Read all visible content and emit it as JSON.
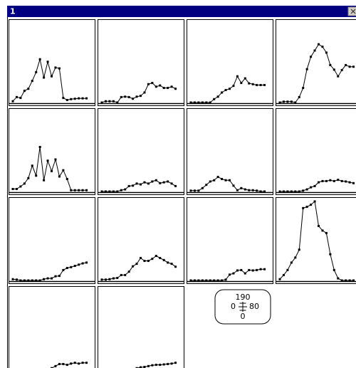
{
  "window": {
    "title": "1"
  },
  "chart_data": [
    {
      "type": "line",
      "x": [
        0,
        4,
        8,
        12,
        16,
        20,
        24,
        28,
        32,
        36,
        40,
        44,
        48,
        52,
        56,
        60,
        64,
        68,
        72,
        76
      ],
      "values": [
        3,
        13,
        11,
        28,
        33,
        52,
        73,
        104,
        60,
        98,
        63,
        84,
        82,
        11,
        6,
        8,
        9,
        10,
        10,
        10
      ],
      "xlim": [
        0,
        80
      ],
      "ylim": [
        0,
        190
      ],
      "color": "#000000"
    },
    {
      "type": "line",
      "x": [
        0,
        4,
        8,
        12,
        16,
        20,
        24,
        28,
        32,
        36,
        40,
        44,
        48,
        52,
        56,
        60,
        64,
        68,
        72,
        76
      ],
      "values": [
        0,
        3,
        3,
        3,
        0,
        13,
        14,
        13,
        9,
        14,
        16,
        24,
        44,
        47,
        38,
        41,
        35,
        35,
        38,
        33
      ],
      "xlim": [
        0,
        80
      ],
      "ylim": [
        0,
        190
      ],
      "color": "#000000"
    },
    {
      "type": "line",
      "x": [
        0,
        4,
        8,
        12,
        16,
        20,
        24,
        28,
        32,
        36,
        40,
        44,
        48,
        52,
        56,
        60,
        64,
        68,
        72,
        76
      ],
      "values": [
        0,
        0,
        0,
        0,
        0,
        0,
        8,
        14,
        24,
        30,
        33,
        40,
        63,
        47,
        58,
        46,
        44,
        42,
        42,
        42
      ],
      "xlim": [
        0,
        80
      ],
      "ylim": [
        0,
        190
      ],
      "color": "#000000"
    },
    {
      "type": "line",
      "x": [
        0,
        4,
        8,
        12,
        16,
        20,
        24,
        28,
        32,
        36,
        40,
        44,
        48,
        52,
        56,
        60,
        64,
        68,
        72,
        76
      ],
      "values": [
        0,
        2,
        2,
        2,
        0,
        13,
        35,
        80,
        110,
        125,
        140,
        134,
        120,
        90,
        79,
        63,
        78,
        90,
        86,
        86
      ],
      "xlim": [
        0,
        80
      ],
      "ylim": [
        0,
        190
      ],
      "color": "#000000"
    },
    {
      "type": "line",
      "x": [
        0,
        4,
        8,
        12,
        16,
        20,
        24,
        28,
        32,
        36,
        40,
        44,
        48,
        52,
        56,
        60,
        64,
        68,
        72,
        76
      ],
      "values": [
        6,
        6,
        12,
        19,
        32,
        62,
        38,
        107,
        27,
        74,
        49,
        77,
        36,
        51,
        30,
        3,
        3,
        3,
        3,
        3
      ],
      "xlim": [
        0,
        80
      ],
      "ylim": [
        0,
        190
      ],
      "color": "#000000"
    },
    {
      "type": "line",
      "x": [
        0,
        4,
        8,
        12,
        16,
        20,
        24,
        28,
        32,
        36,
        40,
        44,
        48,
        52,
        56,
        60,
        64,
        68,
        72,
        76
      ],
      "values": [
        0,
        0,
        0,
        0,
        0,
        3,
        5,
        13,
        14,
        19,
        17,
        22,
        19,
        24,
        27,
        20,
        22,
        24,
        19,
        13
      ],
      "xlim": [
        0,
        80
      ],
      "ylim": [
        0,
        190
      ],
      "color": "#000000"
    },
    {
      "type": "line",
      "x": [
        0,
        4,
        8,
        12,
        16,
        20,
        24,
        28,
        32,
        36,
        40,
        44,
        48,
        52,
        56,
        60,
        64,
        68,
        72,
        76
      ],
      "values": [
        2,
        2,
        2,
        8,
        16,
        24,
        27,
        35,
        30,
        27,
        27,
        14,
        3,
        8,
        5,
        3,
        3,
        2,
        0,
        0
      ],
      "xlim": [
        0,
        80
      ],
      "ylim": [
        0,
        190
      ],
      "color": "#000000"
    },
    {
      "type": "line",
      "x": [
        0,
        4,
        8,
        12,
        16,
        20,
        24,
        28,
        32,
        36,
        40,
        44,
        48,
        52,
        56,
        60,
        64,
        68,
        72,
        76
      ],
      "values": [
        0,
        0,
        0,
        0,
        0,
        0,
        2,
        5,
        10,
        13,
        22,
        25,
        25,
        27,
        25,
        28,
        25,
        24,
        22,
        20
      ],
      "xlim": [
        0,
        80
      ],
      "ylim": [
        0,
        190
      ],
      "color": "#000000"
    },
    {
      "type": "line",
      "x": [
        0,
        4,
        8,
        12,
        16,
        20,
        24,
        28,
        32,
        36,
        40,
        44,
        48,
        52,
        56,
        60,
        64,
        68,
        72,
        76
      ],
      "values": [
        3,
        2,
        0,
        0,
        0,
        0,
        0,
        0,
        3,
        5,
        5,
        10,
        11,
        25,
        30,
        32,
        35,
        38,
        41,
        43
      ],
      "xlim": [
        0,
        80
      ],
      "ylim": [
        0,
        190
      ],
      "color": "#000000"
    },
    {
      "type": "line",
      "x": [
        0,
        4,
        8,
        12,
        16,
        20,
        24,
        28,
        32,
        36,
        40,
        44,
        48,
        52,
        56,
        60,
        64,
        68,
        72,
        76
      ],
      "values": [
        2,
        2,
        3,
        5,
        6,
        13,
        13,
        21,
        34,
        40,
        54,
        47,
        47,
        52,
        59,
        54,
        49,
        43,
        40,
        33
      ],
      "xlim": [
        0,
        80
      ],
      "ylim": [
        0,
        190
      ],
      "color": "#000000"
    },
    {
      "type": "line",
      "x": [
        0,
        4,
        8,
        12,
        16,
        20,
        24,
        28,
        32,
        36,
        40,
        44,
        48,
        52,
        56,
        60,
        64,
        68,
        72,
        76
      ],
      "values": [
        0,
        0,
        0,
        0,
        0,
        0,
        0,
        0,
        0,
        2,
        14,
        17,
        24,
        25,
        17,
        25,
        24,
        25,
        27,
        27
      ],
      "xlim": [
        0,
        80
      ],
      "ylim": [
        0,
        190
      ],
      "color": "#000000"
    },
    {
      "type": "line",
      "x": [
        0,
        4,
        8,
        12,
        16,
        20,
        24,
        28,
        32,
        36,
        40,
        44,
        48,
        52,
        56,
        60,
        64,
        68,
        72,
        76
      ],
      "values": [
        3,
        13,
        25,
        43,
        55,
        74,
        174,
        177,
        182,
        190,
        131,
        120,
        114,
        63,
        25,
        5,
        0,
        0,
        0,
        0
      ],
      "xlim": [
        0,
        80
      ],
      "ylim": [
        0,
        190
      ],
      "color": "#000000"
    },
    {
      "type": "line",
      "x": [
        0,
        4,
        8,
        12,
        16,
        20,
        24,
        28,
        32,
        36,
        40,
        44,
        48,
        52,
        56,
        60,
        64,
        68,
        72,
        76
      ],
      "values": [
        0,
        0,
        0,
        0,
        0,
        0,
        0,
        0,
        0,
        0,
        3,
        8,
        13,
        13,
        11,
        14,
        16,
        14,
        16,
        16
      ],
      "xlim": [
        0,
        80
      ],
      "ylim": [
        0,
        190
      ],
      "color": "#000000"
    },
    {
      "type": "line",
      "x": [
        0,
        4,
        8,
        12,
        16,
        20,
        24,
        28,
        32,
        36,
        40,
        44,
        48,
        52,
        56,
        60,
        64,
        68,
        72,
        76
      ],
      "values": [
        0,
        0,
        0,
        0,
        0,
        0,
        0,
        0,
        0,
        3,
        5,
        6,
        8,
        10,
        11,
        11,
        12,
        13,
        14,
        16
      ],
      "xlim": [
        0,
        80
      ],
      "ylim": [
        0,
        190
      ],
      "color": "#000000"
    }
  ]
}
